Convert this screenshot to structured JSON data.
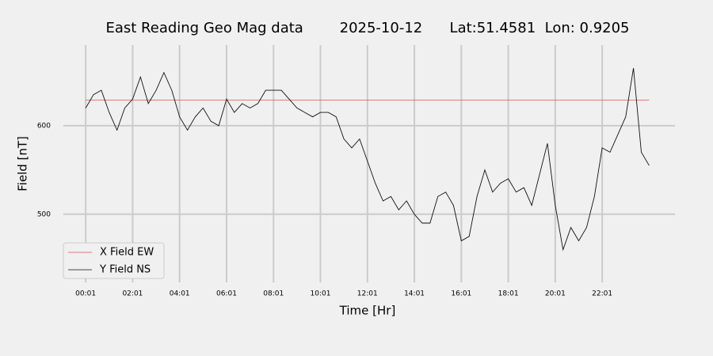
{
  "chart_data": {
    "type": "line",
    "title": "East Reading Geo Mag data        2025-10-12      Lat:51.4581  Lon: 0.9205",
    "xlabel": "Time  [Hr]",
    "ylabel": "Field  [nT]",
    "x": [
      1,
      21,
      41,
      61,
      81,
      101,
      121,
      141,
      161,
      181,
      201,
      221,
      241,
      261,
      281,
      301,
      321,
      341,
      361,
      381,
      401,
      421,
      441,
      461,
      481,
      501,
      521,
      541,
      561,
      581,
      601,
      621,
      641,
      661,
      681,
      701,
      721,
      741,
      761,
      781,
      801,
      821,
      841,
      861,
      881,
      901,
      921,
      941,
      961,
      981,
      1001,
      1021,
      1041,
      1061,
      1081,
      1101,
      1121,
      1141,
      1161,
      1181,
      1201,
      1221,
      1241,
      1261,
      1281,
      1301,
      1321,
      1341,
      1361,
      1381,
      1401,
      1421,
      1441
    ],
    "series": [
      {
        "name": "X Field EW",
        "color": "#e05050",
        "values": [
          629,
          629,
          629,
          629,
          629,
          629,
          629,
          629,
          629,
          629,
          629,
          629,
          629,
          629,
          629,
          629,
          629,
          629,
          629,
          629,
          629,
          629,
          629,
          629,
          629,
          629,
          629,
          629,
          629,
          629,
          629,
          629,
          629,
          629,
          629,
          629,
          629,
          629,
          629,
          629,
          629,
          629,
          629,
          629,
          629,
          629,
          629,
          629,
          629,
          629,
          629,
          629,
          629,
          629,
          629,
          629,
          629,
          629,
          629,
          629,
          629,
          629,
          629,
          629,
          629,
          629,
          629,
          629,
          629,
          629,
          629,
          629,
          629
        ]
      },
      {
        "name": "Y Field NS",
        "color": "#111111",
        "values": [
          620,
          635,
          640,
          615,
          595,
          620,
          630,
          655,
          625,
          640,
          660,
          640,
          610,
          595,
          610,
          620,
          605,
          600,
          630,
          615,
          625,
          620,
          625,
          640,
          640,
          640,
          630,
          620,
          615,
          610,
          615,
          615,
          610,
          585,
          575,
          585,
          560,
          535,
          515,
          520,
          505,
          515,
          500,
          490,
          490,
          520,
          525,
          510,
          470,
          475,
          520,
          550,
          525,
          535,
          540,
          525,
          530,
          510,
          545,
          580,
          510,
          460,
          485,
          470,
          485,
          520,
          575,
          570,
          590,
          610,
          665,
          570,
          555
        ]
      }
    ],
    "xlim": [
      -56,
      1507
    ],
    "xticks": [
      {
        "value": 1,
        "label": "00:01"
      },
      {
        "value": 121,
        "label": "02:01"
      },
      {
        "value": 241,
        "label": "04:01"
      },
      {
        "value": 361,
        "label": "06:01"
      },
      {
        "value": 481,
        "label": "08:01"
      },
      {
        "value": 601,
        "label": "10:01"
      },
      {
        "value": 721,
        "label": "12:01"
      },
      {
        "value": 841,
        "label": "14:01"
      },
      {
        "value": 961,
        "label": "16:01"
      },
      {
        "value": 1081,
        "label": "18:01"
      },
      {
        "value": 1201,
        "label": "20:01"
      },
      {
        "value": 1321,
        "label": "22:01"
      }
    ],
    "ylim": [
      423,
      691
    ],
    "yticks": [
      500,
      600
    ],
    "grid": true,
    "legend": "lower left"
  }
}
